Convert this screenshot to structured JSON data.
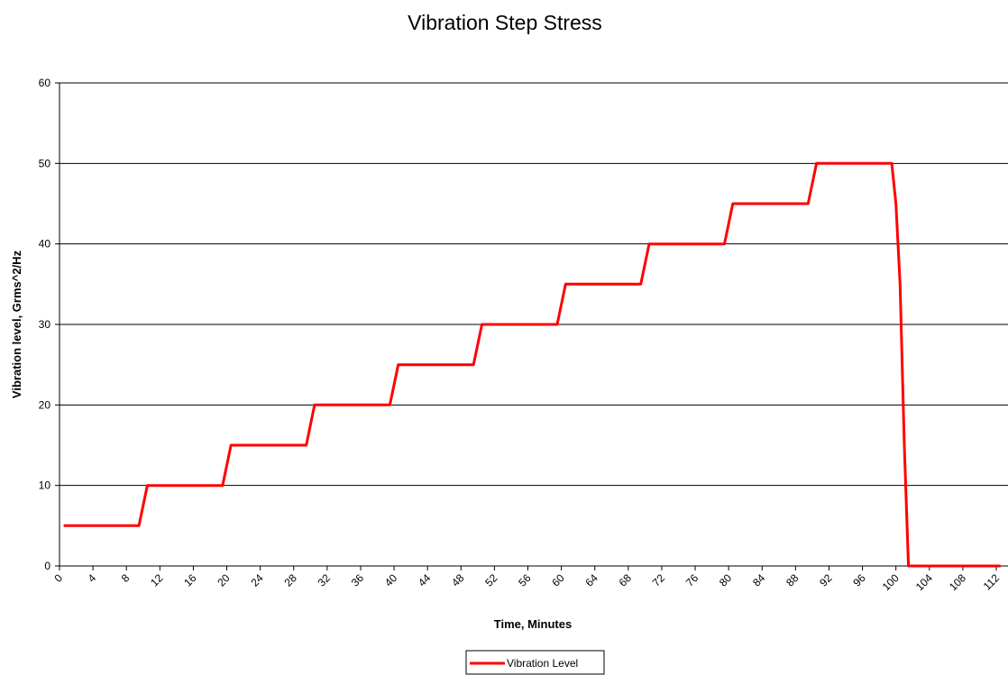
{
  "chart_data": {
    "type": "line",
    "title": "Vibration Step Stress",
    "x_label": "Time, Minutes",
    "y_label": "Vibration level, Grms^2/Hz",
    "x": [
      0.5,
      9.5,
      10.5,
      19.5,
      20.5,
      29.5,
      30.5,
      39.5,
      40.5,
      49.5,
      50.5,
      59.5,
      60.5,
      69.5,
      70.5,
      79.5,
      80.5,
      89.5,
      90.5,
      99.5,
      100,
      100.5,
      101,
      101.5,
      112.5
    ],
    "series": [
      {
        "name": "Vibration Level",
        "color": "#ff0000",
        "values": [
          5,
          5,
          10,
          10,
          15,
          15,
          20,
          20,
          25,
          25,
          30,
          30,
          35,
          35,
          40,
          40,
          45,
          45,
          50,
          50,
          45,
          35,
          15,
          0,
          0
        ]
      }
    ],
    "xlim": [
      0,
      113.4
    ],
    "xticks": [
      0,
      4,
      8,
      12,
      16,
      20,
      24,
      28,
      32,
      36,
      40,
      44,
      48,
      52,
      56,
      60,
      64,
      68,
      72,
      76,
      80,
      84,
      88,
      92,
      96,
      100,
      104,
      108,
      112
    ],
    "ylim": [
      0,
      60
    ],
    "yticks": [
      0,
      10,
      20,
      30,
      40,
      50,
      60
    ],
    "grid": true,
    "legend": "bottom"
  }
}
